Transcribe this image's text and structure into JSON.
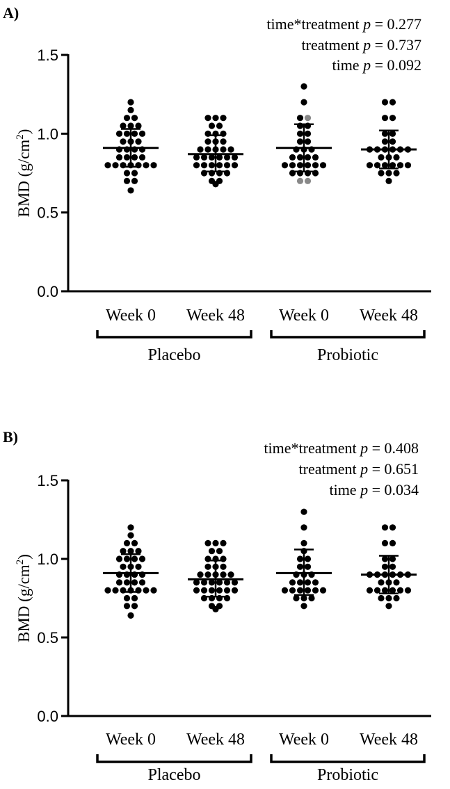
{
  "chart_data": [
    {
      "type": "scatter",
      "panel_label": "A)",
      "ylabel": "BMD (g/cm",
      "ylabel_sup": "2",
      "ylabel_close": ")",
      "ylim": [
        0,
        1.5
      ],
      "yticks": [
        "0.0",
        "0.5",
        "1.0",
        "1.5"
      ],
      "stats": [
        {
          "label": "time*treatment",
          "p": "p",
          "value": "= 0.277"
        },
        {
          "label": "treatment",
          "p": "p",
          "value": "= 0.737"
        },
        {
          "label": "time",
          "p": "p",
          "value": "= 0.092"
        }
      ],
      "groups": [
        {
          "name": "Placebo",
          "categories": [
            "Week 0",
            "Week 48"
          ]
        },
        {
          "name": "Probiotic",
          "categories": [
            "Week 0",
            "Week 48"
          ]
        }
      ],
      "series": [
        {
          "name": "Placebo Week 0",
          "category": "Week 0",
          "group": "Placebo",
          "mean": 0.91,
          "sd_low": 0.79,
          "sd_high": 1.03,
          "values": [
            1.2,
            1.15,
            1.1,
            1.1,
            1.05,
            1.05,
            1.05,
            1.0,
            1.0,
            1.0,
            1.0,
            0.95,
            0.95,
            0.95,
            0.9,
            0.9,
            0.9,
            0.9,
            0.85,
            0.85,
            0.85,
            0.85,
            0.8,
            0.8,
            0.8,
            0.8,
            0.8,
            0.8,
            0.8,
            0.75,
            0.75,
            0.7,
            0.7,
            0.64
          ]
        },
        {
          "name": "Placebo Week 48",
          "category": "Week 48",
          "group": "Placebo",
          "mean": 0.87,
          "sd_low": 0.76,
          "sd_high": 0.99,
          "values": [
            1.1,
            1.1,
            1.1,
            1.05,
            1.05,
            1.0,
            1.0,
            1.0,
            0.95,
            0.95,
            0.95,
            0.9,
            0.9,
            0.9,
            0.9,
            0.9,
            0.85,
            0.85,
            0.85,
            0.85,
            0.85,
            0.85,
            0.8,
            0.8,
            0.8,
            0.8,
            0.8,
            0.8,
            0.75,
            0.75,
            0.75,
            0.75,
            0.7,
            0.7,
            0.68
          ]
        },
        {
          "name": "Probiotic Week 0",
          "category": "Week 0",
          "group": "Probiotic",
          "mean": 0.91,
          "sd_low": 0.76,
          "sd_high": 1.06,
          "values": [
            1.3,
            1.2,
            1.1,
            1.1,
            1.05,
            1.05,
            1.0,
            1.0,
            0.95,
            0.95,
            0.9,
            0.9,
            0.9,
            0.85,
            0.85,
            0.85,
            0.85,
            0.8,
            0.8,
            0.8,
            0.8,
            0.8,
            0.8,
            0.75,
            0.75,
            0.75,
            0.75,
            0.7,
            0.7
          ],
          "gray_indices": [
            3,
            27,
            28
          ]
        },
        {
          "name": "Probiotic Week 48",
          "category": "Week 48",
          "group": "Probiotic",
          "mean": 0.9,
          "sd_low": 0.78,
          "sd_high": 1.02,
          "values": [
            1.2,
            1.2,
            1.1,
            1.1,
            1.0,
            1.0,
            0.95,
            0.95,
            0.9,
            0.9,
            0.9,
            0.9,
            0.9,
            0.9,
            0.85,
            0.85,
            0.85,
            0.8,
            0.8,
            0.8,
            0.8,
            0.8,
            0.8,
            0.75,
            0.75,
            0.75,
            0.7
          ]
        }
      ]
    },
    {
      "type": "scatter",
      "panel_label": "B)",
      "ylabel": "BMD (g/cm",
      "ylabel_sup": "2",
      "ylabel_close": ")",
      "ylim": [
        0,
        1.5
      ],
      "yticks": [
        "0.0",
        "0.5",
        "1.0",
        "1.5"
      ],
      "stats": [
        {
          "label": "time*treatment",
          "p": "p",
          "value": "= 0.408"
        },
        {
          "label": "treatment",
          "p": "p",
          "value": "= 0.651"
        },
        {
          "label": "time",
          "p": "p",
          "value": "= 0.034"
        }
      ],
      "groups": [
        {
          "name": "Placebo",
          "categories": [
            "Week 0",
            "Week 48"
          ]
        },
        {
          "name": "Probiotic",
          "categories": [
            "Week 0",
            "Week 48"
          ]
        }
      ],
      "series": [
        {
          "name": "Placebo Week 0",
          "category": "Week 0",
          "group": "Placebo",
          "mean": 0.91,
          "sd_low": 0.79,
          "sd_high": 1.03,
          "values": [
            1.2,
            1.15,
            1.1,
            1.1,
            1.05,
            1.05,
            1.05,
            1.0,
            1.0,
            1.0,
            1.0,
            0.95,
            0.95,
            0.95,
            0.9,
            0.9,
            0.9,
            0.9,
            0.85,
            0.85,
            0.85,
            0.85,
            0.8,
            0.8,
            0.8,
            0.8,
            0.8,
            0.8,
            0.8,
            0.75,
            0.75,
            0.7,
            0.7,
            0.64
          ]
        },
        {
          "name": "Placebo Week 48",
          "category": "Week 48",
          "group": "Placebo",
          "mean": 0.87,
          "sd_low": 0.76,
          "sd_high": 0.99,
          "values": [
            1.1,
            1.1,
            1.1,
            1.05,
            1.05,
            1.0,
            1.0,
            1.0,
            0.95,
            0.95,
            0.95,
            0.9,
            0.9,
            0.9,
            0.9,
            0.9,
            0.85,
            0.85,
            0.85,
            0.85,
            0.85,
            0.85,
            0.8,
            0.8,
            0.8,
            0.8,
            0.8,
            0.8,
            0.75,
            0.75,
            0.75,
            0.75,
            0.7,
            0.7,
            0.68
          ]
        },
        {
          "name": "Probiotic Week 0",
          "category": "Week 0",
          "group": "Probiotic",
          "mean": 0.91,
          "sd_low": 0.77,
          "sd_high": 1.06,
          "values": [
            1.3,
            1.2,
            1.1,
            1.05,
            1.0,
            1.0,
            0.95,
            0.95,
            0.9,
            0.9,
            0.9,
            0.85,
            0.85,
            0.85,
            0.85,
            0.8,
            0.8,
            0.8,
            0.8,
            0.8,
            0.8,
            0.75,
            0.75,
            0.75,
            0.7
          ]
        },
        {
          "name": "Probiotic Week 48",
          "category": "Week 48",
          "group": "Probiotic",
          "mean": 0.9,
          "sd_low": 0.78,
          "sd_high": 1.02,
          "values": [
            1.2,
            1.2,
            1.1,
            1.1,
            1.0,
            1.0,
            0.95,
            0.95,
            0.9,
            0.9,
            0.9,
            0.9,
            0.9,
            0.9,
            0.85,
            0.85,
            0.85,
            0.8,
            0.8,
            0.8,
            0.8,
            0.8,
            0.8,
            0.75,
            0.75,
            0.75,
            0.7
          ]
        }
      ]
    }
  ],
  "colors": {
    "point": "#000000",
    "point_gray": "#888888",
    "axis": "#000000"
  }
}
